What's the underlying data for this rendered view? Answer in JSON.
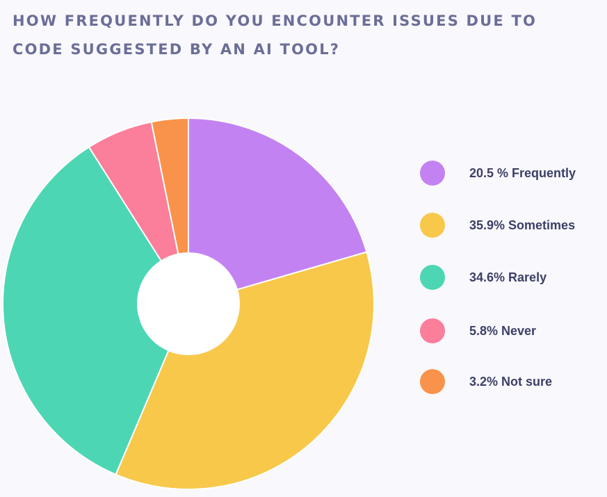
{
  "chart_data": {
    "type": "pie",
    "title_lines": [
      "HOW FREQUENTLY DO YOU ENCOUNTER ISSUES DUE TO",
      "CODE SUGGESTED BY AN AI TOOL?"
    ],
    "categories": [
      "Frequently",
      "Sometimes",
      "Rarely",
      "Never",
      "Not sure"
    ],
    "values": [
      20.5,
      35.9,
      34.6,
      5.8,
      3.2
    ],
    "unit": "%",
    "colors": [
      "#c382f2",
      "#f8c84b",
      "#4dd6b4",
      "#fb7e9a",
      "#f9924a"
    ],
    "legend": [
      {
        "label": "20.5 % Frequently",
        "color": "#c382f2"
      },
      {
        "label": "35.9% Sometimes",
        "color": "#f8c84b"
      },
      {
        "label": "34.6% Rarely",
        "color": "#4dd6b4"
      },
      {
        "label": "5.8% Never",
        "color": "#fb7e9a"
      },
      {
        "label": "3.2% Not sure",
        "color": "#f9924a"
      }
    ],
    "legend_position": "right",
    "donut_hole": true
  }
}
